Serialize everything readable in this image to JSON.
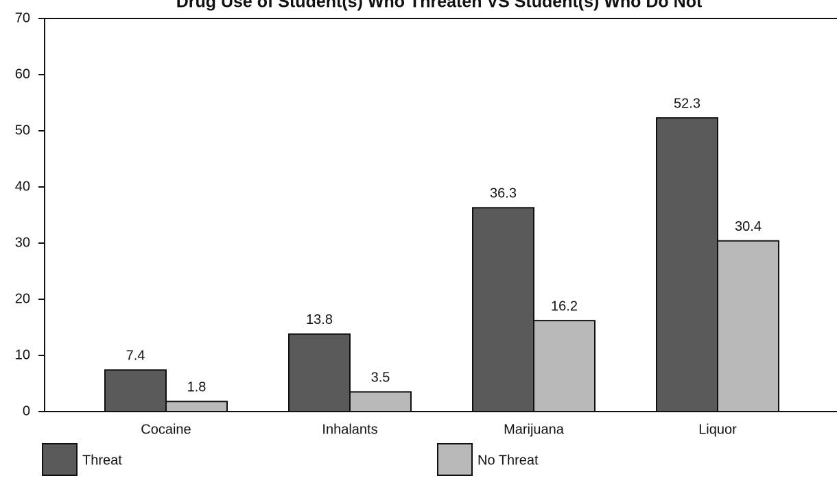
{
  "chart_data": {
    "type": "bar",
    "title": "Drug Use of Student(s) Who Threaten VS Student(s) Who Do Not",
    "categories": [
      "Cocaine",
      "Inhalants",
      "Marijuana",
      "Liquor"
    ],
    "series": [
      {
        "name": "Threat",
        "color": "#5a5a5a",
        "values": [
          7.4,
          13.8,
          36.3,
          52.3
        ]
      },
      {
        "name": "No Threat",
        "color": "#b9b9b9",
        "values": [
          1.8,
          3.5,
          16.2,
          30.4
        ]
      }
    ],
    "ylim": [
      0,
      70
    ],
    "yticks": [
      0,
      10,
      20,
      30,
      40,
      50,
      60,
      70
    ],
    "grid": false
  }
}
